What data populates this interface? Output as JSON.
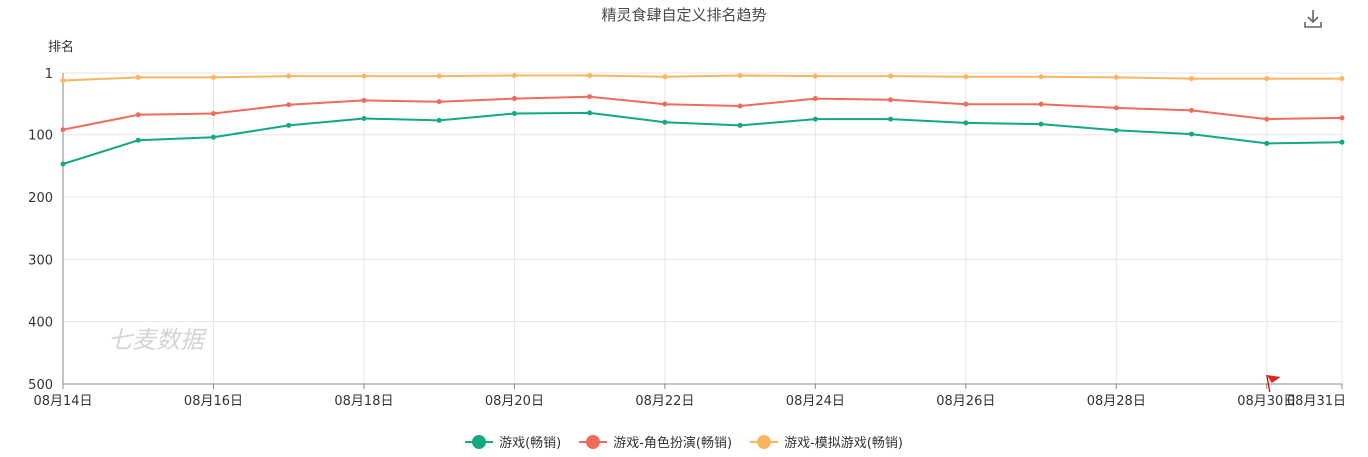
{
  "title": "精灵食肆自定义排名趋势",
  "icons": {
    "download": "download-icon",
    "flag": "flag-icon"
  },
  "watermark": "七麦数据",
  "chart_data": {
    "type": "line",
    "title": "精灵食肆自定义排名趋势",
    "ylabel": "排名",
    "xlabel": "",
    "y_inverted": true,
    "ylim": [
      1,
      500
    ],
    "y_ticks": [
      "1",
      "100",
      "200",
      "300",
      "400",
      "500"
    ],
    "y_tick_values": [
      1,
      100,
      200,
      300,
      400,
      500
    ],
    "x": [
      "08月14日",
      "08月15日",
      "08月16日",
      "08月17日",
      "08月18日",
      "08月19日",
      "08月20日",
      "08月21日",
      "08月22日",
      "08月23日",
      "08月24日",
      "08月25日",
      "08月26日",
      "08月27日",
      "08月28日",
      "08月29日",
      "08月30日",
      "08月31日"
    ],
    "x_tick_labels": [
      "08月14日",
      "08月16日",
      "08月18日",
      "08月20日",
      "08月22日",
      "08月24日",
      "08月26日",
      "08月28日",
      "08月30日",
      "08月31日"
    ],
    "grid": true,
    "legend_position": "bottom",
    "series": [
      {
        "name": "游戏(畅销)",
        "color": "#12a981",
        "values": [
          147,
          109,
          104,
          85,
          74,
          77,
          66,
          65,
          80,
          85,
          75,
          75,
          81,
          83,
          93,
          99,
          114,
          112
        ]
      },
      {
        "name": "游戏-角色扮演(畅销)",
        "color": "#ef6b5b",
        "values": [
          92,
          68,
          66,
          52,
          45,
          47,
          42,
          39,
          51,
          54,
          42,
          44,
          51,
          51,
          57,
          61,
          75,
          73
        ]
      },
      {
        "name": "游戏-模拟游戏(畅销)",
        "color": "#f8b55e",
        "values": [
          13,
          8,
          8,
          6,
          6,
          6,
          5,
          5,
          7,
          5,
          6,
          6,
          7,
          7,
          8,
          10,
          10,
          10
        ]
      }
    ]
  }
}
